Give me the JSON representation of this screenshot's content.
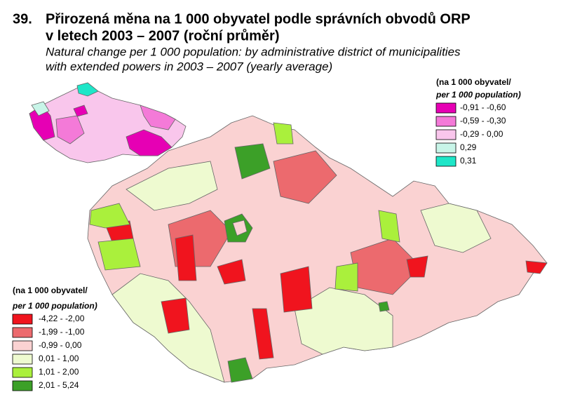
{
  "header": {
    "number": "39.",
    "title_line1": "Přirozená měna na 1 000 obyvatel podle správních obvodů ORP",
    "title_line2": "v letech 2003 – 2007 (roční průměr)",
    "subtitle_line1": "Natural change per 1 000 population: by administrative district of municipalities",
    "subtitle_line2": "with extended powers in 2003 – 2007 (yearly average)"
  },
  "inset_legend": {
    "title_line1": "(na 1 000 obyvatel/",
    "title_line2": "per 1 000 population)",
    "items": [
      {
        "label": "-0,91 - -0,60",
        "color": "#e600b4"
      },
      {
        "label": "-0,59 - -0,30",
        "color": "#f47ad8"
      },
      {
        "label": "-0,29 - 0,00",
        "color": "#f9c6ec"
      },
      {
        "label": "0,29",
        "color": "#c8f5e8"
      },
      {
        "label": "0,31",
        "color": "#1ee6c8"
      }
    ]
  },
  "main_legend": {
    "title_line1": "(na 1 000 obyvatel/",
    "title_line2": "per 1 000 population)",
    "items": [
      {
        "label": "-4,22 - -2,00",
        "color": "#f0141e"
      },
      {
        "label": "-1,99 - -1,00",
        "color": "#ec6a6e"
      },
      {
        "label": "-0,99 - 0,00",
        "color": "#fad2d2"
      },
      {
        "label": "0,01 - 1,00",
        "color": "#eefad0"
      },
      {
        "label": "1,01 - 2,00",
        "color": "#aaf03c"
      },
      {
        "label": "2,01 - 5,24",
        "color": "#3ca028"
      }
    ]
  }
}
